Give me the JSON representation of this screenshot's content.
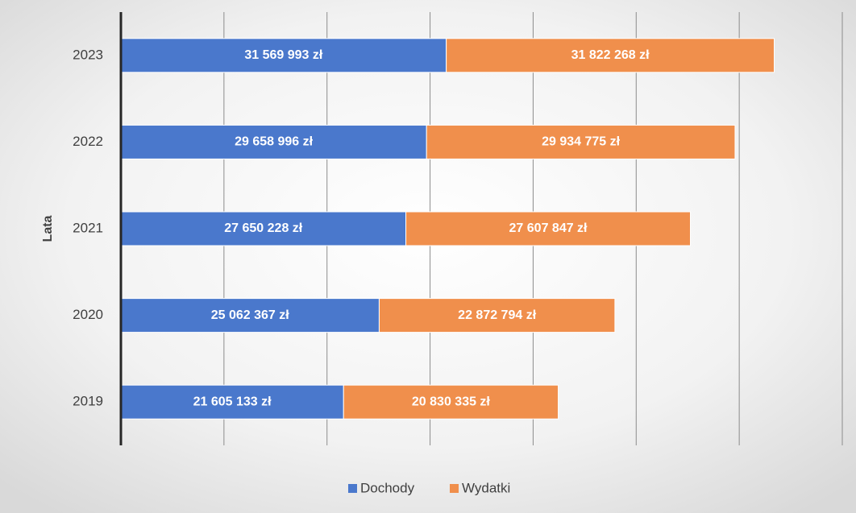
{
  "chart_data": {
    "type": "stacked_barh",
    "y_label": "Lata",
    "categories": [
      "2019",
      "2020",
      "2021",
      "2022",
      "2023"
    ],
    "series": [
      {
        "name": "Dochody",
        "color": "#4a78cc",
        "values": [
          21605133,
          25062367,
          27650228,
          29658996,
          31569993
        ],
        "value_labels": [
          "21 605 133 zł",
          "25 062 367 zł",
          "27 650 228 zł",
          "29 658 996 zł",
          "31 569 993 zł"
        ]
      },
      {
        "name": "Wydatki",
        "color": "#f08f4c",
        "values": [
          20830335,
          22872794,
          27607847,
          29934775,
          31822268
        ],
        "value_labels": [
          "20 830 335 zł",
          "22 872 794 zł",
          "27 607 847 zł",
          "29 934 775 zł",
          "31 822 268 zł"
        ]
      }
    ],
    "xlim": [
      0,
      70000000
    ],
    "xticks": [
      0,
      10000000,
      20000000,
      30000000,
      40000000,
      50000000,
      60000000,
      70000000
    ],
    "grid": true,
    "legend": "bottom"
  }
}
